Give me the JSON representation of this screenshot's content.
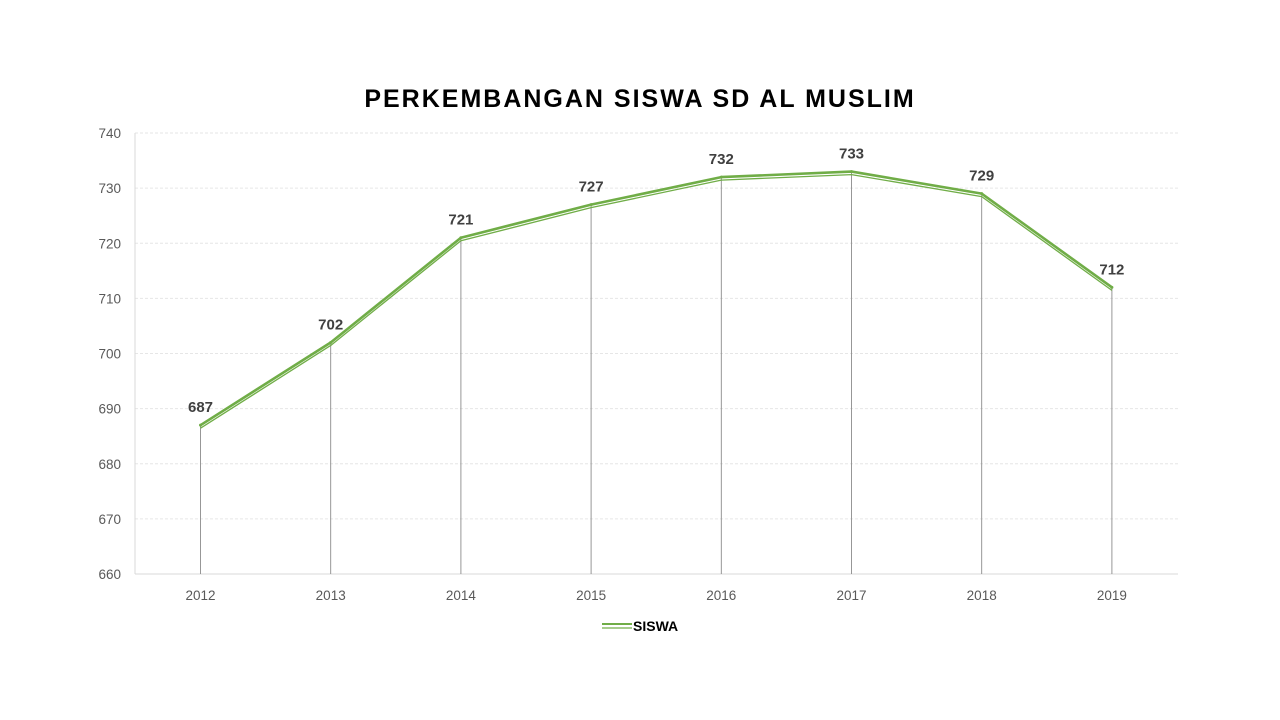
{
  "chart_data": {
    "type": "line",
    "title": "PERKEMBANGAN SISWA SD AL MUSLIM",
    "categories": [
      "2012",
      "2013",
      "2014",
      "2015",
      "2016",
      "2017",
      "2018",
      "2019"
    ],
    "series": [
      {
        "name": "SISWA",
        "values": [
          687,
          702,
          721,
          727,
          732,
          733,
          729,
          712
        ],
        "color": "#70ad47"
      }
    ],
    "ylim": [
      660,
      740
    ],
    "yticks": [
      660,
      670,
      680,
      690,
      700,
      710,
      720,
      730,
      740
    ],
    "grid": true,
    "drop_lines": true,
    "data_labels": true,
    "legend": "bottom-center"
  }
}
